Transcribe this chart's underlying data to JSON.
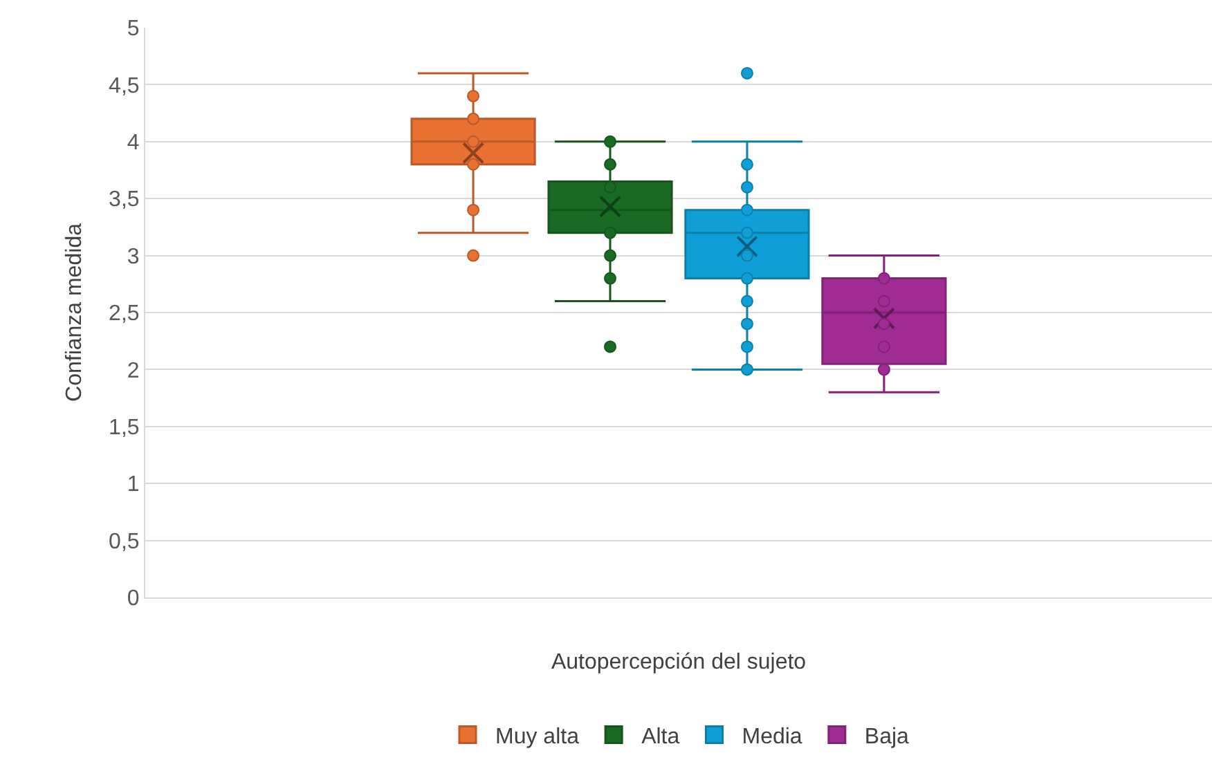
{
  "chart_data": {
    "type": "box",
    "xlabel": "Autopercepción del sujeto",
    "ylabel": "Confianza medida",
    "categories": [
      null
    ],
    "ylim": [
      0,
      5
    ],
    "yticks": [
      {
        "value": 0,
        "label": "0"
      },
      {
        "value": 0.5,
        "label": "0,5"
      },
      {
        "value": 1,
        "label": "1"
      },
      {
        "value": 1.5,
        "label": "1,5"
      },
      {
        "value": 2,
        "label": "2"
      },
      {
        "value": 2.5,
        "label": "2,5"
      },
      {
        "value": 3,
        "label": "3"
      },
      {
        "value": 3.5,
        "label": "3,5"
      },
      {
        "value": 4,
        "label": "4"
      },
      {
        "value": 4.5,
        "label": "4,5"
      },
      {
        "value": 5,
        "label": "5"
      }
    ],
    "grid": "y",
    "legend": "bottom",
    "marker": "circle",
    "series": [
      {
        "name": "Muy alta",
        "color": "#e97132",
        "boxes": [
          {
            "low": 3.2,
            "q1": 3.8,
            "median": 4.0,
            "q3": 4.2,
            "high": 4.6,
            "mean": 3.9,
            "outliers": [
              4.4,
              4.2,
              4.0,
              3.8,
              3.4,
              3.0
            ]
          }
        ]
      },
      {
        "name": "Alta",
        "color": "#196b24",
        "boxes": [
          {
            "low": 2.6,
            "q1": 3.2,
            "median": 3.4,
            "q3": 3.65,
            "high": 4.0,
            "mean": 3.43,
            "outliers": [
              4.0,
              3.8,
              3.6,
              3.2,
              3.0,
              2.8,
              2.2
            ]
          }
        ]
      },
      {
        "name": "Media",
        "color": "#0f9ed5",
        "boxes": [
          {
            "low": 2.0,
            "q1": 2.8,
            "median": 3.2,
            "q3": 3.4,
            "high": 4.0,
            "mean": 3.08,
            "outliers": [
              4.6,
              3.8,
              3.6,
              3.4,
              3.2,
              3.0,
              2.8,
              2.6,
              2.4,
              2.2,
              2.0
            ]
          }
        ]
      },
      {
        "name": "Baja",
        "color": "#a02b93",
        "boxes": [
          {
            "low": 1.8,
            "q1": 2.05,
            "median": 2.5,
            "q3": 2.8,
            "high": 3.0,
            "mean": 2.45,
            "outliers": [
              2.8,
              2.6,
              2.4,
              2.2,
              2.0
            ]
          }
        ]
      }
    ]
  }
}
